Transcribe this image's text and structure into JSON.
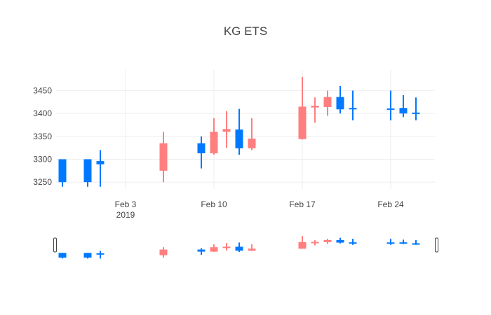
{
  "chart_data": {
    "type": "candlestick",
    "title": "KG ETS",
    "increasing_color": "#ff7f7f",
    "decreasing_color": "#0078ff",
    "grid": true,
    "rangeslider": true,
    "xlim": [
      "2019-01-29",
      "2019-02-27"
    ],
    "ylim": [
      3235,
      3495
    ],
    "x_ticks": [
      {
        "date": "2019-02-03",
        "label": "Feb 3",
        "sublabel": "2019"
      },
      {
        "date": "2019-02-10",
        "label": "Feb 10",
        "sublabel": ""
      },
      {
        "date": "2019-02-17",
        "label": "Feb 17",
        "sublabel": ""
      },
      {
        "date": "2019-02-24",
        "label": "Feb 24",
        "sublabel": ""
      }
    ],
    "y_ticks": [
      3250,
      3300,
      3350,
      3400,
      3450
    ],
    "candles": [
      {
        "date": "2019-01-29",
        "open": 3300,
        "high": 3300,
        "low": 3240,
        "close": 3250
      },
      {
        "date": "2019-01-31",
        "open": 3300,
        "high": 3300,
        "low": 3240,
        "close": 3250
      },
      {
        "date": "2019-02-01",
        "open": 3296,
        "high": 3320,
        "low": 3240,
        "close": 3289
      },
      {
        "date": "2019-02-06",
        "open": 3275,
        "high": 3360,
        "low": 3250,
        "close": 3335
      },
      {
        "date": "2019-02-09",
        "open": 3335,
        "high": 3350,
        "low": 3280,
        "close": 3313
      },
      {
        "date": "2019-02-10",
        "open": 3313,
        "high": 3390,
        "low": 3310,
        "close": 3360
      },
      {
        "date": "2019-02-11",
        "open": 3360,
        "high": 3405,
        "low": 3325,
        "close": 3366
      },
      {
        "date": "2019-02-12",
        "open": 3365,
        "high": 3410,
        "low": 3310,
        "close": 3324
      },
      {
        "date": "2019-02-13",
        "open": 3324,
        "high": 3390,
        "low": 3320,
        "close": 3345
      },
      {
        "date": "2019-02-17",
        "open": 3344,
        "high": 3480,
        "low": 3343,
        "close": 3415
      },
      {
        "date": "2019-02-18",
        "open": 3413,
        "high": 3435,
        "low": 3380,
        "close": 3417
      },
      {
        "date": "2019-02-19",
        "open": 3414,
        "high": 3450,
        "low": 3395,
        "close": 3436
      },
      {
        "date": "2019-02-20",
        "open": 3436,
        "high": 3460,
        "low": 3400,
        "close": 3409
      },
      {
        "date": "2019-02-21",
        "open": 3412,
        "high": 3450,
        "low": 3385,
        "close": 3409
      },
      {
        "date": "2019-02-24",
        "open": 3411,
        "high": 3450,
        "low": 3385,
        "close": 3409
      },
      {
        "date": "2019-02-25",
        "open": 3412,
        "high": 3440,
        "low": 3392,
        "close": 3400
      },
      {
        "date": "2019-02-26",
        "open": 3402,
        "high": 3435,
        "low": 3385,
        "close": 3399
      }
    ]
  }
}
